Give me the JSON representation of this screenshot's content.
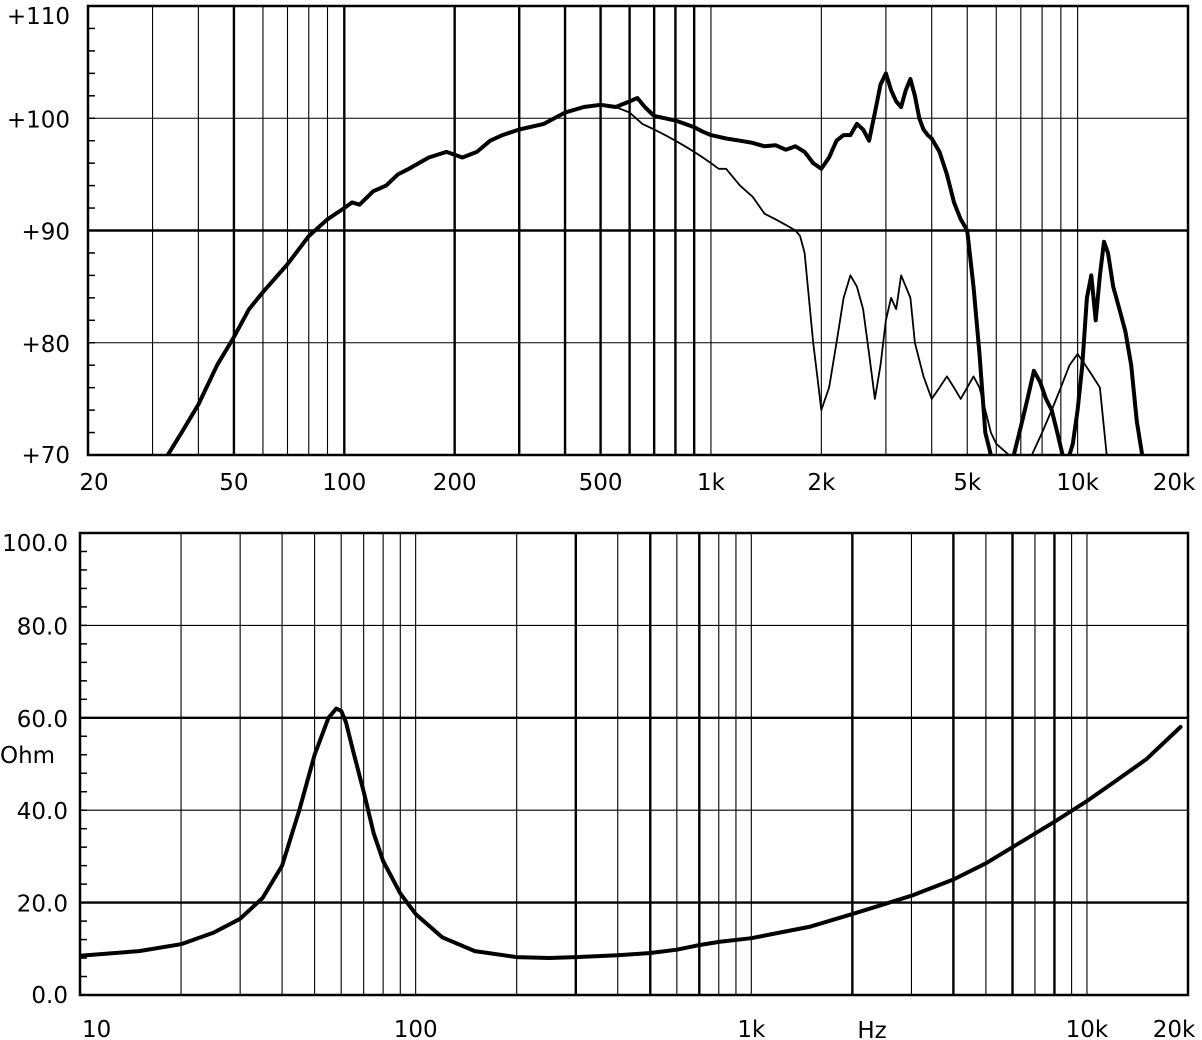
{
  "chart_data": [
    {
      "type": "line",
      "xscale": "log",
      "xlim": [
        20,
        20000
      ],
      "ylim": [
        70,
        110
      ],
      "grid": true,
      "xlabel": "",
      "ylabel": "",
      "x_ticks": [
        {
          "value": 20,
          "label": "20"
        },
        {
          "value": 50,
          "label": "50"
        },
        {
          "value": 100,
          "label": "100"
        },
        {
          "value": 200,
          "label": "200"
        },
        {
          "value": 500,
          "label": "500"
        },
        {
          "value": 1000,
          "label": "1k"
        },
        {
          "value": 2000,
          "label": "2k"
        },
        {
          "value": 5000,
          "label": "5k"
        },
        {
          "value": 10000,
          "label": "10k"
        },
        {
          "value": 20000,
          "label": "20k"
        }
      ],
      "y_ticks": [
        {
          "value": 70,
          "label": "+70"
        },
        {
          "value": 80,
          "label": "+80"
        },
        {
          "value": 90,
          "label": "+90"
        },
        {
          "value": 100,
          "label": "+100"
        },
        {
          "value": 110,
          "label": "+110"
        }
      ],
      "major_y": [
        90
      ],
      "major_x": [
        50,
        100,
        200,
        300,
        400,
        500,
        600,
        700,
        800,
        900
      ],
      "series": [
        {
          "weight": "bold",
          "x": [
            33,
            36,
            40,
            45,
            50,
            55,
            60,
            70,
            80,
            90,
            100,
            105,
            110,
            120,
            130,
            140,
            150,
            170,
            190,
            210,
            230,
            250,
            270,
            300,
            350,
            400,
            450,
            500,
            550,
            600,
            630,
            660,
            700,
            750,
            800,
            850,
            900,
            950,
            1000,
            1100,
            1200,
            1300,
            1400,
            1500,
            1600,
            1700,
            1800,
            1900,
            2000,
            2100,
            2200,
            2300,
            2400,
            2500,
            2600,
            2700,
            2800,
            2900,
            3000,
            3100,
            3200,
            3300,
            3400,
            3500,
            3600,
            3700,
            3800,
            3900,
            4000,
            4200,
            4400,
            4600,
            4800,
            5000,
            5200,
            5400,
            5600,
            5800,
            6000,
            6200,
            6400,
            6700,
            7000,
            7300,
            7600,
            7900,
            8200,
            8500,
            8800,
            9100,
            9400,
            9700,
            10000,
            10300,
            10600,
            10900,
            11200,
            11500,
            11800,
            12100,
            12500,
            13000,
            13500,
            14000,
            14500,
            15000
          ],
          "y": [
            70,
            72,
            74.5,
            78,
            80.5,
            83,
            84.5,
            87,
            89.5,
            91,
            92,
            92.5,
            92.3,
            93.5,
            94,
            95,
            95.5,
            96.5,
            97,
            96.5,
            97,
            98,
            98.5,
            99,
            99.5,
            100.5,
            101,
            101.2,
            101,
            101.5,
            101.8,
            101,
            100.2,
            100,
            99.8,
            99.5,
            99.2,
            98.8,
            98.5,
            98.2,
            98,
            97.8,
            97.5,
            97.6,
            97.2,
            97.5,
            97,
            96,
            95.5,
            96.5,
            98,
            98.5,
            98.5,
            99.5,
            99,
            98,
            100.5,
            103,
            104,
            102.5,
            101.5,
            101,
            102.5,
            103.5,
            102,
            100,
            99,
            98.5,
            98.2,
            97,
            95,
            92.5,
            91,
            90,
            85,
            79,
            72,
            70,
            69,
            68,
            68.5,
            70,
            72.5,
            75,
            77.5,
            76.5,
            75,
            74,
            72,
            70,
            69.5,
            71,
            74,
            78,
            84,
            86,
            82,
            86,
            89,
            88,
            85,
            83,
            81,
            78,
            73,
            70
          ]
        },
        {
          "weight": "thin",
          "x": [
            550,
            600,
            650,
            700,
            750,
            800,
            850,
            900,
            950,
            1000,
            1050,
            1100,
            1200,
            1300,
            1400,
            1500,
            1600,
            1700,
            1750,
            1800,
            1850,
            1900,
            1950,
            2000,
            2100,
            2200,
            2300,
            2400,
            2500,
            2600,
            2700,
            2800,
            2900,
            3000,
            3100,
            3200,
            3300,
            3400,
            3500,
            3600,
            3800,
            4000,
            4200,
            4400,
            4600,
            4800,
            5000,
            5200,
            5400,
            5600,
            5800,
            6000,
            6500,
            7000,
            7500,
            8000,
            8500,
            9000,
            9500,
            10000,
            10500,
            11000,
            11500,
            12000
          ],
          "y": [
            101,
            100.5,
            99.5,
            99,
            98.5,
            98,
            97.5,
            97,
            96.5,
            96,
            95.5,
            95.5,
            94,
            93,
            91.5,
            91,
            90.5,
            90,
            89.5,
            88,
            84,
            80,
            77,
            74,
            76,
            80,
            84,
            86,
            85,
            83,
            79,
            75,
            78,
            82,
            84,
            83,
            86,
            85,
            84,
            80,
            77,
            75,
            76,
            77,
            76,
            75,
            76,
            77,
            76,
            74,
            72,
            71,
            70,
            69,
            70,
            72,
            74,
            76,
            78,
            79,
            78,
            77,
            76,
            70
          ]
        }
      ]
    },
    {
      "type": "line",
      "xscale": "log",
      "xlim": [
        10,
        20000
      ],
      "ylim": [
        0,
        100
      ],
      "grid": true,
      "xlabel": "Hz",
      "ylabel": "Ohm",
      "x_ticks": [
        {
          "value": 10,
          "label": "10"
        },
        {
          "value": 100,
          "label": "100"
        },
        {
          "value": 1000,
          "label": "1k"
        },
        {
          "value": 10000,
          "label": "10k"
        },
        {
          "value": 20000,
          "label": "20k"
        }
      ],
      "y_ticks": [
        {
          "value": 0,
          "label": "0.0"
        },
        {
          "value": 20,
          "label": "20.0"
        },
        {
          "value": 40,
          "label": "40.0"
        },
        {
          "value": 60,
          "label": "60.0"
        },
        {
          "value": 80,
          "label": "80.0"
        },
        {
          "value": 100,
          "label": "100.0"
        }
      ],
      "major_y": [
        20,
        60
      ],
      "major_x": [
        300,
        500,
        700,
        2000,
        4000,
        6000,
        8000
      ],
      "series": [
        {
          "weight": "bold",
          "x": [
            10,
            15,
            20,
            25,
            30,
            35,
            40,
            45,
            50,
            55,
            58,
            60,
            62,
            65,
            70,
            75,
            80,
            90,
            100,
            120,
            150,
            200,
            250,
            300,
            400,
            500,
            600,
            700,
            800,
            1000,
            1500,
            2000,
            3000,
            4000,
            5000,
            6000,
            8000,
            10000,
            12000,
            15000,
            19000
          ],
          "y": [
            8.5,
            9.5,
            11,
            13.5,
            16.5,
            21,
            28,
            40,
            52,
            60,
            62,
            61.5,
            59,
            53,
            44,
            35,
            29,
            22,
            17.5,
            12.5,
            9.5,
            8.2,
            8,
            8.2,
            8.6,
            9.1,
            9.8,
            10.8,
            11.5,
            12.3,
            14.8,
            17.5,
            21.5,
            25,
            28.5,
            32,
            37.5,
            42,
            46,
            51,
            58
          ]
        }
      ]
    }
  ]
}
